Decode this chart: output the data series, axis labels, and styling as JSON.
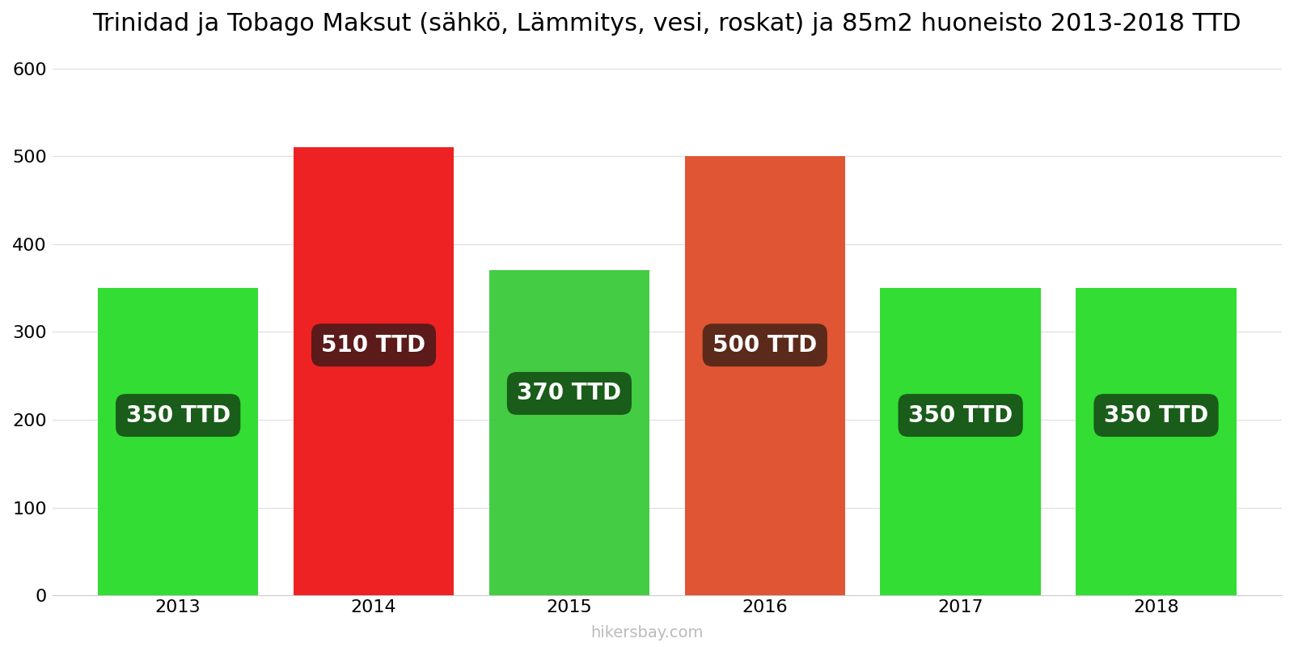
{
  "title": "Trinidad ja Tobago Maksut (sähkö, Lämmitys, vesi, roskat) ja 85m2 huoneisto 2013-2018 TTD",
  "categories": [
    2013,
    2014,
    2015,
    2016,
    2017,
    2018
  ],
  "values": [
    350,
    510,
    370,
    500,
    350,
    350
  ],
  "bar_colors": [
    "#33dd33",
    "#ee2222",
    "#44cc44",
    "#e05533",
    "#33dd33",
    "#33dd33"
  ],
  "label_bg_colors": [
    "#1a5c1a",
    "#5c1a1a",
    "#1a5c1a",
    "#5c2a1a",
    "#1a5c1a",
    "#1a5c1a"
  ],
  "labels": [
    "350 TTD",
    "510 TTD",
    "370 TTD",
    "500 TTD",
    "350 TTD",
    "350 TTD"
  ],
  "ylim": [
    0,
    620
  ],
  "yticks": [
    0,
    100,
    200,
    300,
    400,
    500,
    600
  ],
  "ylabel": "",
  "xlabel": "",
  "footer": "hikersbay.com",
  "background_color": "#ffffff",
  "label_y_positions": [
    205,
    285,
    230,
    285,
    205,
    205
  ],
  "title_fontsize": 22,
  "tick_fontsize": 16,
  "label_fontsize": 20,
  "footer_fontsize": 14,
  "bar_width": 0.82
}
